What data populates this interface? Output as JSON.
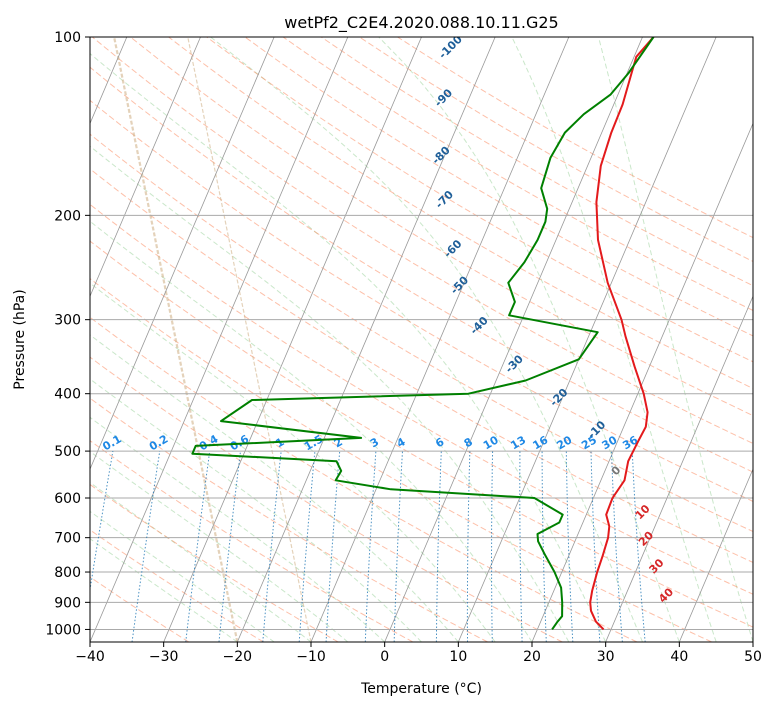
{
  "chart_data": {
    "type": "line",
    "title": "wetPf2_C2E4.2020.088.10.11.G25",
    "xlabel": "Temperature (°C)",
    "ylabel": "Pressure (hPa)",
    "xlim": [
      -40,
      50
    ],
    "ylim": [
      1050,
      100
    ],
    "yscale": "log",
    "x_ticks": [
      -40,
      -30,
      -20,
      -10,
      0,
      10,
      20,
      30,
      40,
      50
    ],
    "y_ticks": [
      100,
      200,
      300,
      400,
      500,
      600,
      700,
      800,
      900,
      1000
    ],
    "grid": true,
    "series": [
      {
        "key": "temperature",
        "color": "#e31a1c",
        "points": [
          [
            29.0,
            1000
          ],
          [
            27.5,
            970
          ],
          [
            26.2,
            930
          ],
          [
            25.6,
            900
          ],
          [
            25.2,
            860
          ],
          [
            24.8,
            800
          ],
          [
            24.6,
            750
          ],
          [
            24.3,
            700
          ],
          [
            23.8,
            670
          ],
          [
            22.7,
            640
          ],
          [
            22.6,
            600
          ],
          [
            23.2,
            560
          ],
          [
            22.6,
            520
          ],
          [
            22.8,
            480
          ],
          [
            23.0,
            455
          ],
          [
            22.4,
            430
          ],
          [
            20.8,
            400
          ],
          [
            18.0,
            360
          ],
          [
            15.0,
            320
          ],
          [
            13.5,
            300
          ],
          [
            9.5,
            260
          ],
          [
            5.7,
            220
          ],
          [
            3.3,
            190
          ],
          [
            1.8,
            165
          ],
          [
            1.3,
            145
          ],
          [
            1.2,
            130
          ],
          [
            0.6,
            115
          ],
          [
            0.3,
            108
          ],
          [
            1.5,
            100
          ]
        ]
      },
      {
        "key": "dewpoint",
        "color": "#008000",
        "points": [
          [
            22.0,
            1000
          ],
          [
            22.3,
            970
          ],
          [
            22.6,
            950
          ],
          [
            21.8,
            900
          ],
          [
            20.8,
            850
          ],
          [
            19.0,
            800
          ],
          [
            16.8,
            750
          ],
          [
            15.0,
            710
          ],
          [
            14.5,
            690
          ],
          [
            16.8,
            660
          ],
          [
            16.8,
            640
          ],
          [
            12.0,
            600
          ],
          [
            -8.0,
            580
          ],
          [
            -16.0,
            560
          ],
          [
            -15.8,
            540
          ],
          [
            -17.0,
            520
          ],
          [
            -37.0,
            505
          ],
          [
            -37.0,
            490
          ],
          [
            -15.0,
            475
          ],
          [
            -35.0,
            445
          ],
          [
            -32.0,
            410
          ],
          [
            -3.0,
            400
          ],
          [
            4.0,
            380
          ],
          [
            10.0,
            350
          ],
          [
            11.0,
            315
          ],
          [
            -2.0,
            295
          ],
          [
            -2.0,
            280
          ],
          [
            -4.0,
            260
          ],
          [
            -3.0,
            240
          ],
          [
            -2.5,
            220
          ],
          [
            -2.5,
            205
          ],
          [
            -3.0,
            195
          ],
          [
            -5.0,
            180
          ],
          [
            -5.5,
            160
          ],
          [
            -5.0,
            145
          ],
          [
            -3.5,
            135
          ],
          [
            -1.0,
            125
          ],
          [
            0.2,
            115
          ],
          [
            1.5,
            100
          ]
        ]
      }
    ],
    "background_labels": {
      "dry_adiabats": [
        "-100",
        "-90",
        "-80",
        "-70",
        "-60",
        "-50",
        "-40",
        "-30",
        "-20",
        "-10",
        "0",
        "10",
        "20",
        "30",
        "40"
      ],
      "mixing_ratio": [
        "0.1",
        "0.2",
        "0.4",
        "0.6",
        "1",
        "1.5",
        "2",
        "3",
        "4",
        "6",
        "8",
        "10",
        "13",
        "16",
        "20",
        "25",
        "30",
        "36"
      ]
    }
  }
}
